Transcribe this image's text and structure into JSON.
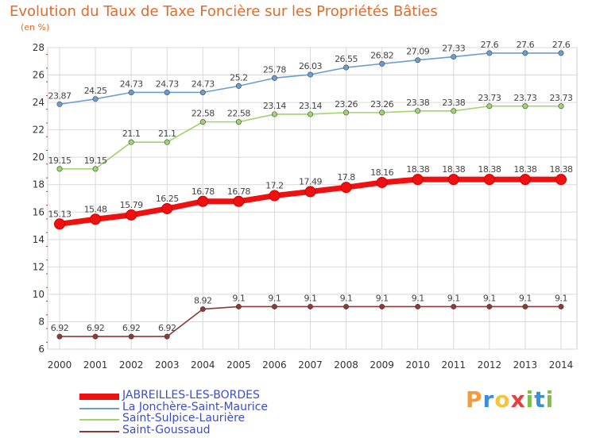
{
  "header": {
    "title": "Evolution du Taux de Taxe Foncière sur les Propriétés Bâties",
    "unit": "(en %)"
  },
  "brand": {
    "letters": [
      "P",
      "r",
      "o",
      "x",
      "i",
      "t",
      "i"
    ],
    "colors": [
      "#f29b3a",
      "#3a8fd6",
      "#f2c53a",
      "#e04040",
      "#7cc04a",
      "#3a8fd6",
      "#7cc04a"
    ]
  },
  "chart_data": {
    "type": "line",
    "title": "Evolution du Taux de Taxe Foncière sur les Propriétés Bâties",
    "ylabel": "(en %)",
    "xlabel": "",
    "ylim": [
      6,
      28
    ],
    "yticks": [
      6,
      8,
      10,
      12,
      14,
      16,
      18,
      20,
      22,
      24,
      26,
      28
    ],
    "grid": true,
    "categories": [
      "2000",
      "2001",
      "2002",
      "2003",
      "2004",
      "2005",
      "2006",
      "2007",
      "2008",
      "2009",
      "2010",
      "2011",
      "2012",
      "2013",
      "2014"
    ],
    "series": [
      {
        "name": "JABREILLES-LES-BORDES",
        "color": "#ee1111",
        "emphasis": true,
        "values": [
          15.13,
          15.48,
          15.79,
          16.25,
          16.78,
          16.78,
          17.2,
          17.49,
          17.8,
          18.16,
          18.38,
          18.38,
          18.38,
          18.38,
          18.38
        ],
        "labels": [
          "15.13",
          "15.48",
          "15.79",
          "16.25",
          "16.78",
          "16.78",
          "17.2",
          "17.49",
          "17.8",
          "18.16",
          "18.38",
          "18.38",
          "18.38",
          "18.38",
          "18.38"
        ]
      },
      {
        "name": "La Jonchère-Saint-Maurice",
        "color": "#6a9ed0",
        "emphasis": false,
        "values": [
          23.87,
          24.25,
          24.73,
          24.73,
          24.73,
          25.2,
          25.78,
          26.03,
          26.55,
          26.82,
          27.09,
          27.33,
          27.6,
          27.6,
          27.6
        ],
        "labels": [
          "23.87",
          "24.25",
          "24.73",
          "24.73",
          "24.73",
          "25.2",
          "25.78",
          "26.03",
          "26.55",
          "26.82",
          "27.09",
          "27.33",
          "27.6",
          "27.6",
          "27.6"
        ]
      },
      {
        "name": "Saint-Sulpice-Laurière",
        "color": "#9dd66b",
        "emphasis": false,
        "values": [
          19.15,
          19.15,
          21.1,
          21.1,
          22.58,
          22.58,
          23.14,
          23.14,
          23.26,
          23.26,
          23.38,
          23.38,
          23.73,
          23.73,
          23.73
        ],
        "labels": [
          "19.15",
          "19.15",
          "21.1",
          "21.1",
          "22.58",
          "22.58",
          "23.14",
          "23.14",
          "23.26",
          "23.26",
          "23.38",
          "23.38",
          "23.73",
          "23.73",
          "23.73"
        ]
      },
      {
        "name": "Saint-Goussaud",
        "color": "#8b3a3a",
        "emphasis": false,
        "values": [
          6.92,
          6.92,
          6.92,
          6.92,
          8.92,
          9.1,
          9.1,
          9.1,
          9.1,
          9.1,
          9.1,
          9.1,
          9.1,
          9.1,
          9.1
        ],
        "labels": [
          "6.92",
          "6.92",
          "6.92",
          "6.92",
          "8.92",
          "9.1",
          "9.1",
          "9.1",
          "9.1",
          "9.1",
          "9.1",
          "9.1",
          "9.1",
          "9.1",
          "9.1"
        ]
      }
    ]
  }
}
